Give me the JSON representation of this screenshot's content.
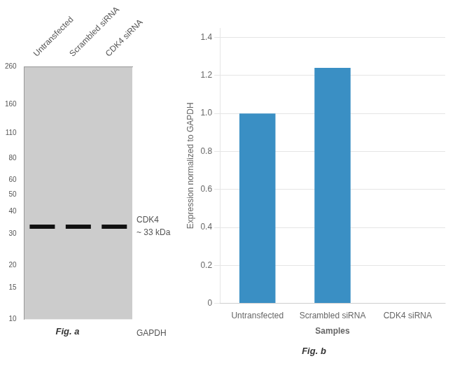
{
  "chart_data": [
    {
      "type": "blot",
      "title": "Fig. a",
      "categories": [
        "Untransfected",
        "Scrambled siRNA",
        "CDK4 siRNA"
      ],
      "values": [
        33,
        33,
        33
      ],
      "color": "#111111",
      "ylim": [
        10,
        260
      ],
      "yticks": [
        260,
        160,
        110,
        80,
        60,
        50,
        40,
        30,
        20,
        15,
        10
      ],
      "log": "y",
      "grid": false,
      "annotations": [
        "CDK4",
        "~ 33 kDa",
        "GAPDH"
      ]
    },
    {
      "type": "bar",
      "title": "Fig. b",
      "categories": [
        "Untransfected",
        "Scrambled siRNA",
        "CDK4 siRNA"
      ],
      "values": [
        1.0,
        1.24,
        0.0
      ],
      "color": "#3a8fc4",
      "xlabel": "Samples",
      "ylabel": "Expression normalized to GAPDH",
      "ylim": [
        0,
        1.45
      ],
      "yticks": [
        0,
        0.2,
        0.4,
        0.6,
        0.8,
        {
          "value": 1.0,
          "label": "1.0"
        },
        1.2,
        1.4
      ],
      "grid": true
    }
  ]
}
